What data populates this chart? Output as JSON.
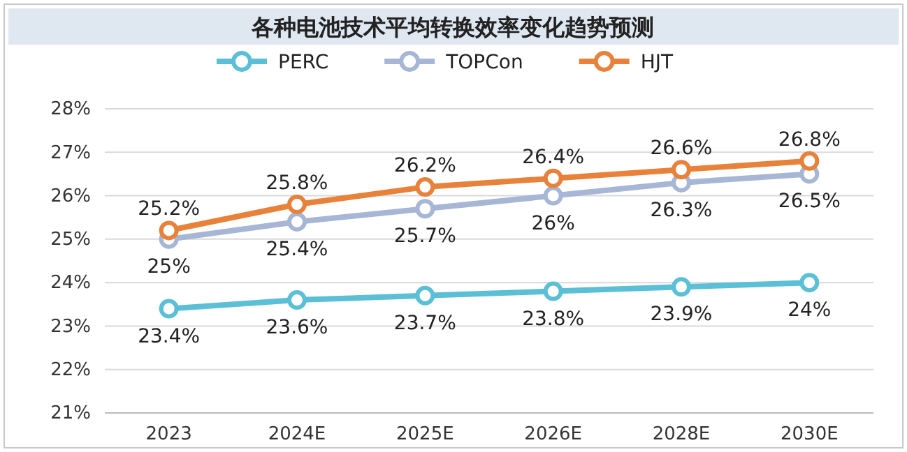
{
  "chart_data": {
    "type": "line",
    "title": "各种电池技术平均转换效率变化趋势预测",
    "categories": [
      "2023",
      "2024E",
      "2025E",
      "2026E",
      "2028E",
      "2030E"
    ],
    "series": [
      {
        "name": "PERC",
        "color": "#5bbfd6",
        "values": [
          23.4,
          23.6,
          23.7,
          23.8,
          23.9,
          24
        ],
        "value_labels": [
          "23.4%",
          "23.6%",
          "23.7%",
          "23.8%",
          "23.9%",
          "24%"
        ]
      },
      {
        "name": "TOPCon",
        "color": "#a7b6d4",
        "values": [
          25,
          25.4,
          25.7,
          26,
          26.3,
          26.5
        ],
        "value_labels": [
          "25%",
          "25.4%",
          "25.7%",
          "26%",
          "26.3%",
          "26.5%"
        ]
      },
      {
        "name": "HJT",
        "color": "#e8823a",
        "values": [
          25.2,
          25.8,
          26.2,
          26.4,
          26.6,
          26.8
        ],
        "value_labels": [
          "25.2%",
          "25.8%",
          "26.2%",
          "26.4%",
          "26.6%",
          "26.8%"
        ]
      }
    ],
    "ylim": [
      21,
      28
    ],
    "yticks": [
      {
        "value": 21,
        "label": "21%"
      },
      {
        "value": 22,
        "label": "22%"
      },
      {
        "value": 23,
        "label": "23%"
      },
      {
        "value": 24,
        "label": "24%"
      },
      {
        "value": 25,
        "label": "25%"
      },
      {
        "value": 26,
        "label": "26%"
      },
      {
        "value": 27,
        "label": "27%"
      },
      {
        "value": 28,
        "label": "28%"
      }
    ],
    "grid": "y",
    "legend": "top",
    "marker": "circle",
    "line_style": "solid"
  }
}
